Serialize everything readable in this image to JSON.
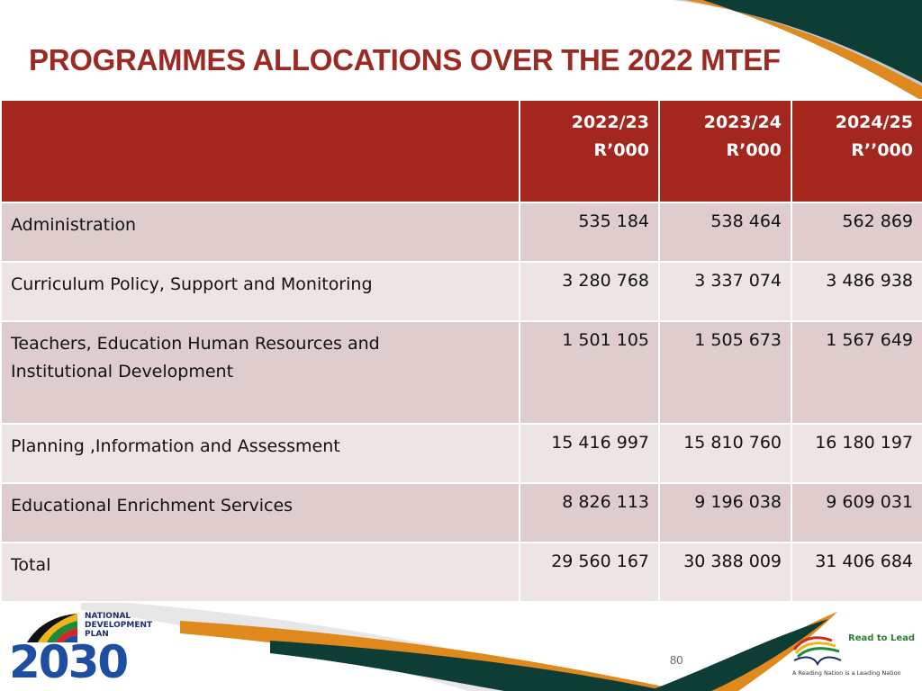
{
  "slide": {
    "title": "PROGRAMMES ALLOCATIONS OVER THE 2022 MTEF",
    "page_number": "80"
  },
  "table": {
    "header": [
      {
        "year": "",
        "unit": ""
      },
      {
        "year": "2022/23",
        "unit": "R’000"
      },
      {
        "year": "2023/24",
        "unit": "R’000"
      },
      {
        "year": "2024/25",
        "unit": "R’’000"
      }
    ],
    "rows": [
      {
        "programme": "Administration",
        "y2022_23": "535 184",
        "y2023_24": "538 464",
        "y2024_25": "562 869"
      },
      {
        "programme": "Curriculum Policy, Support and Monitoring",
        "y2022_23": "3 280 768",
        "y2023_24": "3 337 074",
        "y2024_25": "3 486 938"
      },
      {
        "programme_line1": "Teachers, Education Human Resources and",
        "programme_line2": "Institutional Development",
        "y2022_23": "1 501 105",
        "y2023_24": "1 505 673",
        "y2024_25": "1 567 649"
      },
      {
        "programme": "Planning ,Information and Assessment",
        "y2022_23": "15 416 997",
        "y2023_24": "15 810 760",
        "y2024_25": "16 180 197"
      },
      {
        "programme": "Educational Enrichment Services",
        "y2022_23": "8 826 113",
        "y2023_24": "9 196 038",
        "y2024_25": "9 609 031"
      },
      {
        "programme": "Total",
        "y2022_23": "29 560 167",
        "y2023_24": "30 388 009",
        "y2024_25": "31 406 684"
      }
    ]
  },
  "logos": {
    "ndp": {
      "line1": "NATIONAL",
      "line2": "DEVELOPMENT",
      "line3": "PLAN",
      "year": "2030"
    },
    "read_to_lead": {
      "name": "Read to Lead",
      "tagline": "A Reading Nation is a Leading Nation"
    }
  },
  "colors": {
    "title": "#9b2a23",
    "header_bg": "#a4271f",
    "row_dark": "#dfcdcd",
    "row_light": "#ede4e4",
    "deco_green": "#0e3d36",
    "deco_orange": "#e08a1e"
  }
}
